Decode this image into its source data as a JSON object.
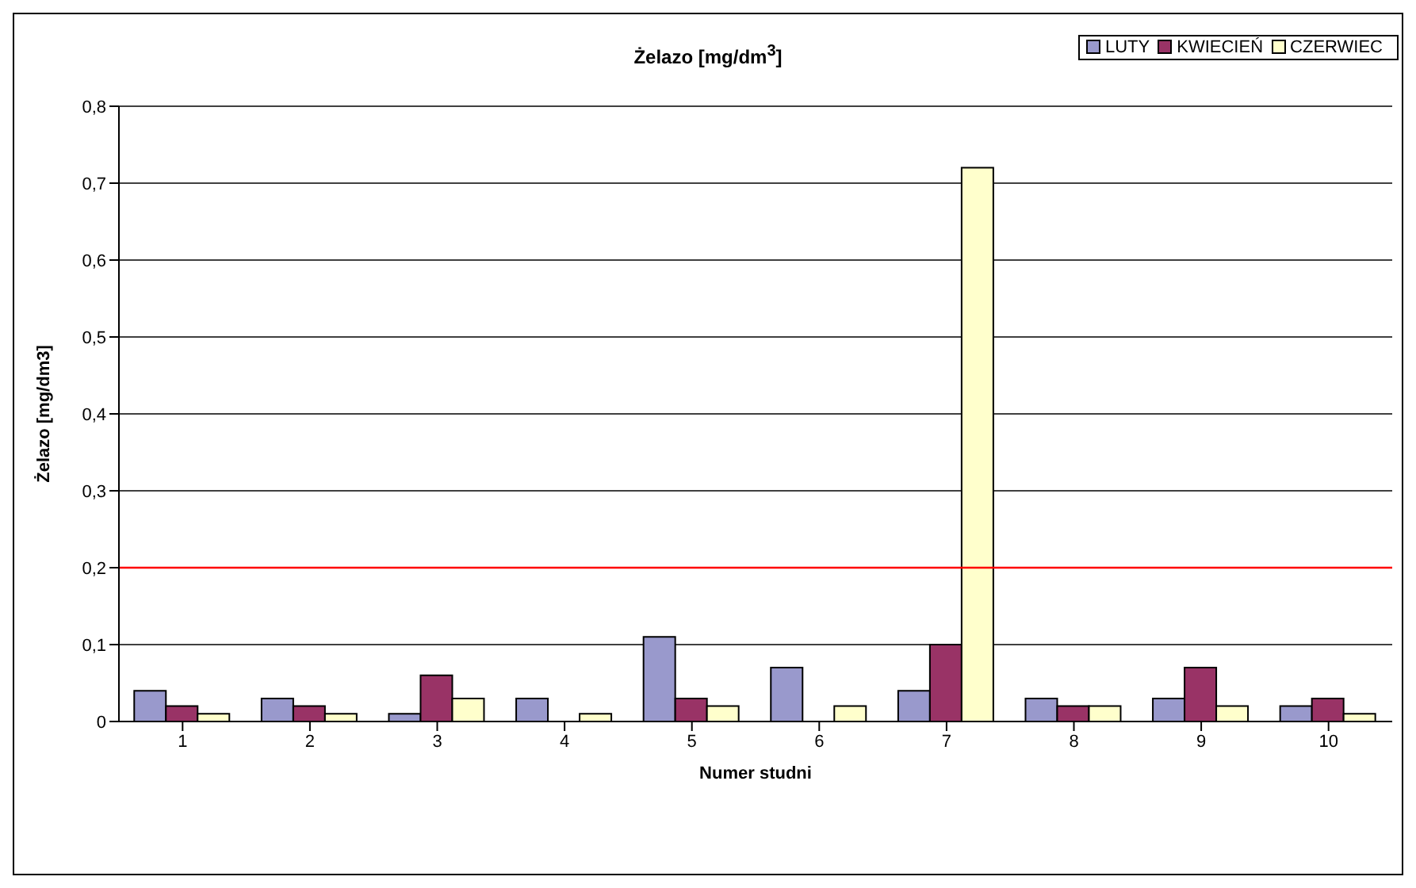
{
  "chart_data": {
    "type": "bar",
    "title": "Żelazo [mg/dm$^{3}$]",
    "xlabel": "Numer studni",
    "ylabel": "Żelazo [mg/dm3]",
    "categories": [
      "1",
      "2",
      "3",
      "4",
      "5",
      "6",
      "7",
      "8",
      "9",
      "10"
    ],
    "series": [
      {
        "name": "LUTY",
        "color": "#9999cc",
        "values": [
          0.04,
          0.03,
          0.01,
          0.03,
          0.11,
          0.07,
          0.04,
          0.03,
          0.03,
          0.02
        ]
      },
      {
        "name": "KWIECIEŃ",
        "color": "#993366",
        "values": [
          0.02,
          0.02,
          0.06,
          null,
          0.03,
          null,
          0.1,
          0.02,
          0.07,
          0.03
        ]
      },
      {
        "name": "CZERWIEC",
        "color": "#ffffcc",
        "values": [
          0.01,
          0.01,
          0.03,
          0.01,
          0.02,
          0.02,
          0.72,
          0.02,
          0.02,
          0.01
        ]
      }
    ],
    "ylim": [
      0,
      0.8
    ],
    "yticks": [
      0,
      {
        "value": 0.1,
        "label": "0,1"
      },
      {
        "value": 0.2,
        "label": "0,2"
      },
      {
        "value": 0.3,
        "label": "0,3"
      },
      {
        "value": 0.4,
        "label": "0,4"
      },
      {
        "value": 0.5,
        "label": "0,5"
      },
      {
        "value": 0.6,
        "label": "0,6"
      },
      {
        "value": 0.7,
        "label": "0,7"
      },
      {
        "value": 0.8,
        "label": "0,8"
      }
    ],
    "grid": "y",
    "legend": "top right",
    "ref_lines": [
      {
        "axis": "y",
        "value": 0.2,
        "color": "#ff0000"
      }
    ]
  }
}
